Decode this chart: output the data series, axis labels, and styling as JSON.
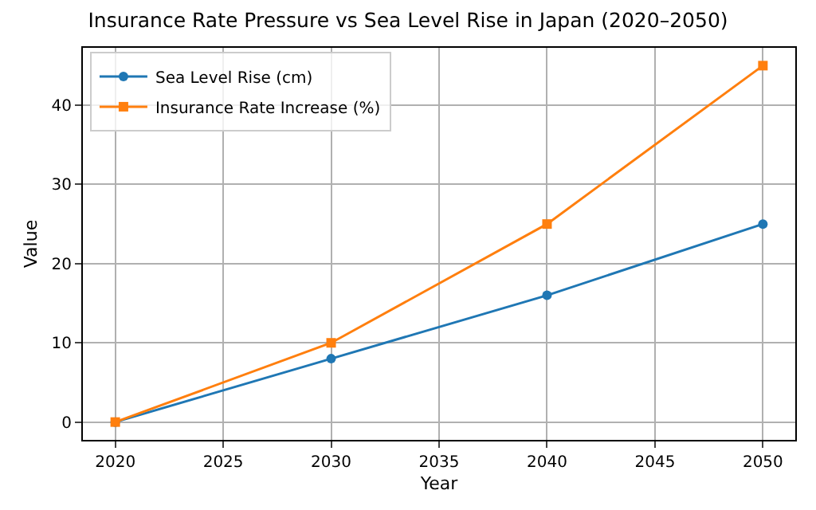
{
  "chart_data": {
    "type": "line",
    "title": "Insurance Rate Pressure vs Sea Level Rise in Japan (2020–2050)",
    "xlabel": "Year",
    "ylabel": "Value",
    "x": [
      2020,
      2030,
      2040,
      2050
    ],
    "series": [
      {
        "name": "Sea Level Rise (cm)",
        "color": "#1f77b4",
        "marker": "circle",
        "values": [
          0,
          8,
          16,
          25
        ]
      },
      {
        "name": "Insurance Rate Increase (%)",
        "color": "#ff7f0e",
        "marker": "square",
        "values": [
          0,
          10,
          25,
          45
        ]
      }
    ],
    "xlim": [
      2018.5,
      2051.5
    ],
    "xticks": [
      2020,
      2025,
      2030,
      2035,
      2040,
      2045,
      2050
    ],
    "ylim": [
      -2.25,
      47.25
    ],
    "yticks": [
      0,
      10,
      20,
      30,
      40
    ],
    "grid": true,
    "legend": "top left",
    "line_style": "solid"
  }
}
